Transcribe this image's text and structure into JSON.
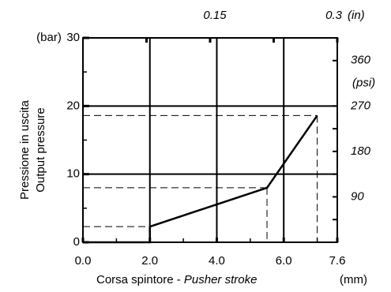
{
  "chart_data": {
    "type": "line",
    "x_label": "Corsa spintore - ",
    "x_label_italic": "Pusher stroke",
    "x_unit": "(mm)",
    "y_label": [
      "Pressione in uscita",
      "Output pressure"
    ],
    "y_unit": "(bar)",
    "x2_unit": "(in)",
    "y2_unit": "(psi)",
    "x": [
      0,
      2,
      2,
      5.5,
      7
    ],
    "values": [
      0,
      0,
      2.3,
      8,
      18.6
    ],
    "color": "#000000",
    "xlim": [
      0,
      7.6
    ],
    "xticks": [
      {
        "value": 0,
        "label": "0.0"
      },
      {
        "value": 2,
        "label": "2.0"
      },
      {
        "value": 4,
        "label": "4.0"
      },
      {
        "value": 6,
        "label": "6.0"
      },
      7.6
    ],
    "xminor": [
      1,
      3,
      5,
      7
    ],
    "ylim": [
      0,
      30
    ],
    "yticks": [
      0,
      10,
      20,
      30
    ],
    "yminor": [
      5,
      15,
      25
    ],
    "x2lim": [
      0,
      0.3
    ],
    "x2ticks": [
      0.15,
      0.3
    ],
    "x2minor": [
      0.075,
      0.225
    ],
    "y2lim": [
      0,
      405
    ],
    "y2ticks": [
      90,
      180,
      270,
      360
    ],
    "y2minor": [
      45,
      135,
      225
    ],
    "grid": true,
    "guides": true
  }
}
